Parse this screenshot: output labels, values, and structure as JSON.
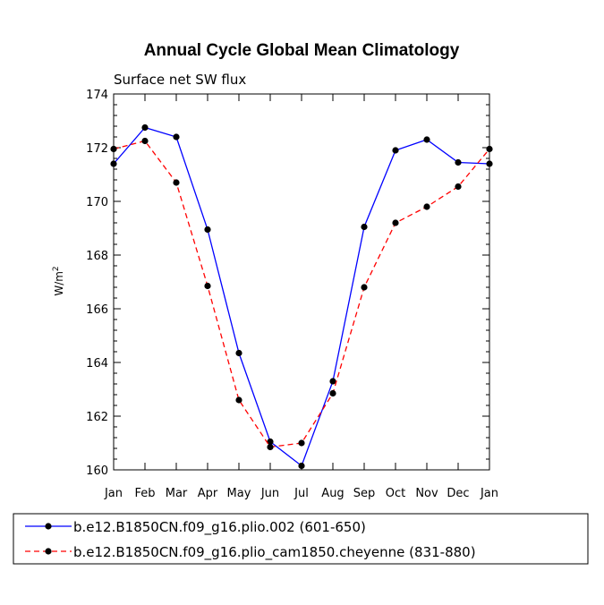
{
  "chart_data": {
    "type": "line",
    "title": "Annual Cycle Global Mean Climatology",
    "subtitle": "Surface net SW flux",
    "xlabel": "",
    "ylabel_base": "W/m",
    "ylabel_exp": "2",
    "categories": [
      "Jan",
      "Feb",
      "Mar",
      "Apr",
      "May",
      "Jun",
      "Jul",
      "Aug",
      "Sep",
      "Oct",
      "Nov",
      "Dec",
      "Jan"
    ],
    "ylim": [
      160,
      174
    ],
    "yticks": [
      160,
      162,
      164,
      166,
      168,
      170,
      172,
      174
    ],
    "grid": false,
    "legend_position": "bottom",
    "series": [
      {
        "name": "b.e12.B1850CN.f09_g16.plio.002 (601-650)",
        "color": "#0000ff",
        "dash": "solid",
        "marker": "circle",
        "values": [
          171.4,
          172.75,
          172.4,
          168.95,
          164.35,
          161.05,
          160.15,
          163.3,
          169.05,
          171.9,
          172.3,
          171.45,
          171.4
        ]
      },
      {
        "name": "b.e12.B1850CN.f09_g16.plio_cam1850.cheyenne (831-880)",
        "color": "#ff0000",
        "dash": "dashed",
        "marker": "circle",
        "values": [
          171.95,
          172.25,
          170.7,
          166.85,
          162.6,
          160.85,
          161.0,
          162.85,
          166.8,
          169.2,
          169.8,
          170.55,
          171.95
        ]
      }
    ]
  }
}
